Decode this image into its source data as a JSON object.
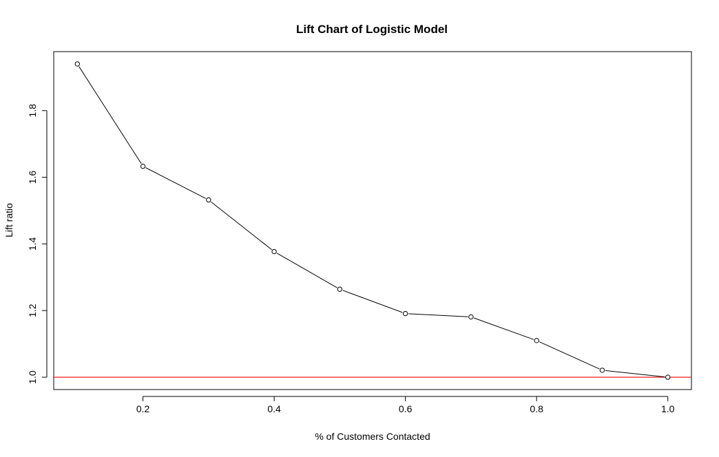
{
  "chart_data": {
    "type": "line",
    "title": "Lift Chart of Logistic Model",
    "xlabel": "% of Customers Contacted",
    "ylabel": "Lift ratio",
    "x": [
      0.1,
      0.2,
      0.3,
      0.4,
      0.5,
      0.6,
      0.7,
      0.8,
      0.9,
      1.0
    ],
    "series": [
      {
        "name": "Lift ratio",
        "values": [
          1.94,
          1.633,
          1.532,
          1.377,
          1.264,
          1.191,
          1.181,
          1.11,
          1.021,
          1.0
        ],
        "color": "#000000",
        "marker": "open-circle"
      }
    ],
    "reference_line": {
      "y": 1.0,
      "color": "#ff0000"
    },
    "xlim": [
      0.064,
      1.036
    ],
    "ylim": [
      0.963,
      1.977
    ],
    "xticks": [
      0.2,
      0.4,
      0.6,
      0.8,
      1.0
    ],
    "xtick_labels": [
      "0.2",
      "0.4",
      "0.6",
      "0.8",
      "1.0"
    ],
    "yticks": [
      1.0,
      1.2,
      1.4,
      1.6,
      1.8
    ],
    "ytick_labels": [
      "1.0",
      "1.2",
      "1.4",
      "1.6",
      "1.8"
    ],
    "grid": false,
    "legend": "none"
  }
}
